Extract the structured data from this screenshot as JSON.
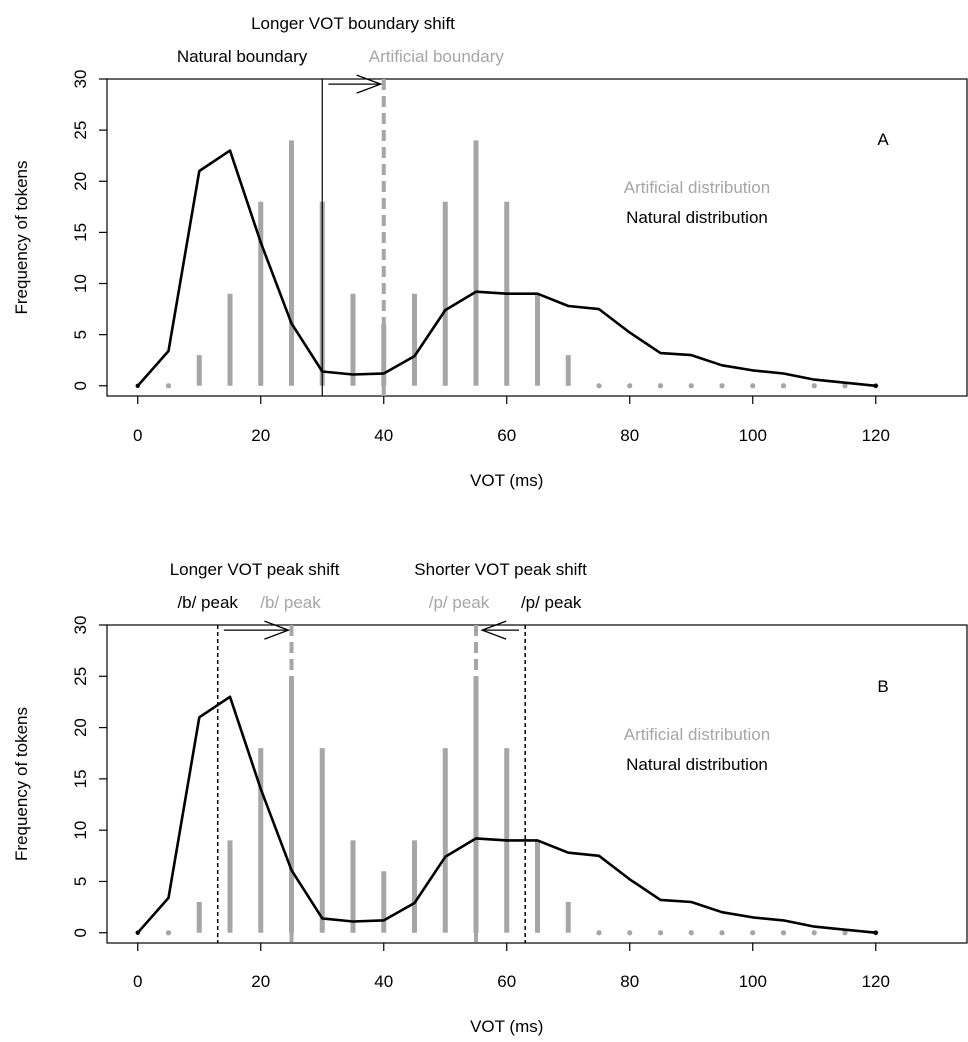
{
  "chart_data": [
    {
      "panel": "A",
      "type": "line",
      "xlabel": "VOT (ms)",
      "ylabel": "Frequency of tokens",
      "xlim": [
        -5,
        135
      ],
      "ylim": [
        -1,
        30
      ],
      "xticks": [
        0,
        20,
        40,
        60,
        80,
        100,
        120
      ],
      "yticks": [
        0,
        5,
        10,
        15,
        20,
        25,
        30
      ],
      "grid": false,
      "legend": [
        "Artificial distribution",
        "Natural distribution"
      ],
      "legend_placement": "right",
      "series": [
        {
          "name": "Natural distribution",
          "style": "line",
          "color": "#000000",
          "x": [
            0,
            5,
            10,
            15,
            20,
            25,
            30,
            35,
            40,
            45,
            50,
            55,
            60,
            65,
            70,
            75,
            80,
            85,
            90,
            95,
            100,
            105,
            110,
            115,
            120
          ],
          "y": [
            0,
            3.4,
            21,
            23,
            14,
            6.1,
            1.4,
            1.1,
            1.2,
            2.9,
            7.4,
            9.2,
            9.0,
            9.0,
            7.8,
            7.5,
            5.2,
            3.2,
            3.0,
            2.0,
            1.5,
            1.2,
            0.6,
            0.3,
            0
          ]
        },
        {
          "name": "Artificial distribution",
          "style": "bars",
          "color": "#a6a6a6",
          "x": [
            0,
            5,
            10,
            15,
            20,
            25,
            30,
            35,
            40,
            45,
            50,
            55,
            60,
            65,
            70,
            75,
            80,
            85,
            90,
            95,
            100,
            105,
            110,
            115,
            120
          ],
          "y": [
            0,
            0,
            3,
            9,
            18,
            24,
            18,
            9,
            6,
            9,
            18,
            24,
            18,
            9,
            3,
            0,
            0,
            0,
            0,
            0,
            0,
            0,
            0,
            0,
            0
          ]
        }
      ],
      "annotations": [
        {
          "id": "natural-boundary",
          "text": "Natural boundary",
          "x": 30,
          "style": "solid",
          "color": "#000000",
          "row": 2
        },
        {
          "id": "artificial-boundary",
          "text": "Artificial boundary",
          "x": 40,
          "style": "dashed",
          "color": "#a6a6a6",
          "row": 2
        }
      ],
      "shift_titles": [
        {
          "text": "Longer VOT boundary shift",
          "center_x": 35
        }
      ],
      "arrows": [
        {
          "from": 31,
          "to": 39.5,
          "y": 29.5
        }
      ],
      "panel_label": "A"
    },
    {
      "panel": "B",
      "type": "line",
      "xlabel": "VOT (ms)",
      "ylabel": "Frequency of tokens",
      "xlim": [
        -5,
        135
      ],
      "ylim": [
        -1,
        30
      ],
      "xticks": [
        0,
        20,
        40,
        60,
        80,
        100,
        120
      ],
      "yticks": [
        0,
        5,
        10,
        15,
        20,
        25,
        30
      ],
      "grid": false,
      "legend": [
        "Artificial distribution",
        "Natural distribution"
      ],
      "legend_placement": "right",
      "series": [
        {
          "name": "Natural distribution",
          "style": "line",
          "color": "#000000",
          "x": [
            0,
            5,
            10,
            15,
            20,
            25,
            30,
            35,
            40,
            45,
            50,
            55,
            60,
            65,
            70,
            75,
            80,
            85,
            90,
            95,
            100,
            105,
            110,
            115,
            120
          ],
          "y": [
            0,
            3.4,
            21,
            23,
            14,
            6.1,
            1.4,
            1.1,
            1.2,
            2.9,
            7.4,
            9.2,
            9.0,
            9.0,
            7.8,
            7.5,
            5.2,
            3.2,
            3.0,
            2.0,
            1.5,
            1.2,
            0.6,
            0.3,
            0
          ]
        },
        {
          "name": "Artificial distribution",
          "style": "bars",
          "color": "#a6a6a6",
          "x": [
            0,
            5,
            10,
            15,
            20,
            25,
            30,
            35,
            40,
            45,
            50,
            55,
            60,
            65,
            70,
            75,
            80,
            85,
            90,
            95,
            100,
            105,
            110,
            115,
            120
          ],
          "y": [
            0,
            0,
            3,
            9,
            18,
            25,
            18,
            9,
            6,
            9,
            18,
            25,
            18,
            9,
            3,
            0,
            0,
            0,
            0,
            0,
            0,
            0,
            0,
            0,
            0
          ]
        }
      ],
      "annotations": [
        {
          "id": "b-peak-natural",
          "text": "/b/ peak",
          "x": 13,
          "style": "dotted",
          "color": "#000000",
          "row": 2
        },
        {
          "id": "b-peak-artificial",
          "text": "/b/ peak",
          "x": 25,
          "style": "dashed",
          "color": "#a6a6a6",
          "row": 2
        },
        {
          "id": "p-peak-artificial",
          "text": "/p/ peak",
          "x": 55,
          "style": "dashed",
          "color": "#a6a6a6",
          "row": 2
        },
        {
          "id": "p-peak-natural",
          "text": "/p/ peak",
          "x": 63,
          "style": "dotted",
          "color": "#000000",
          "row": 2
        }
      ],
      "shift_titles": [
        {
          "text": "Longer VOT peak shift",
          "center_x": 19
        },
        {
          "text": "Shorter VOT peak shift",
          "center_x": 59
        }
      ],
      "arrows": [
        {
          "from": 14,
          "to": 24.5,
          "y": 29.5
        },
        {
          "from": 62,
          "to": 56,
          "y": 29.5
        }
      ],
      "panel_label": "B"
    }
  ]
}
